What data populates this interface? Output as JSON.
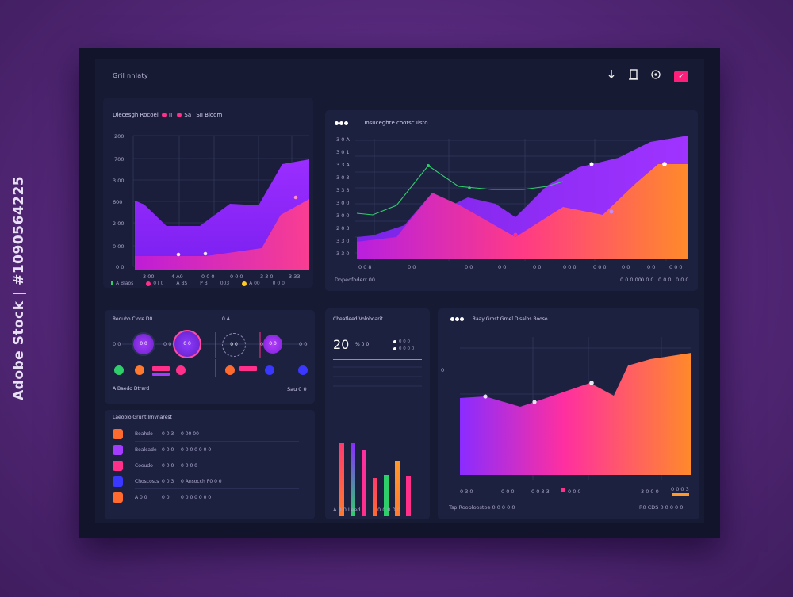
{
  "watermark": "Adobe Stock | #1090564225",
  "topbar": {
    "title": "Gril nnlaty",
    "icons": [
      "download-icon",
      "clipboard-icon",
      "refresh-icon",
      "check-icon"
    ],
    "check_glyph": "✓"
  },
  "panel1": {
    "title": "Diecesgh Rocoel",
    "title_tags": [
      "II",
      "Sa",
      "SII Bloom"
    ],
    "y_ticks": [
      "200",
      "700",
      "3 00",
      "600",
      "2 00",
      "0 00",
      "0 0"
    ],
    "x_ticks": [
      "3 00",
      "4 A0",
      "0 0 0",
      "0 0 0",
      "3 3 0",
      "3 33"
    ],
    "legend": [
      "A Blaos",
      "0 I 0",
      "A BS",
      "P B",
      "003",
      "A 00",
      "0 0 0"
    ]
  },
  "panel2": {
    "title": "Tosuceghte cootsc Ilsto",
    "y_ticks": [
      "3 0 A",
      "3 0 1",
      "3 3 A",
      "3 0 3",
      "3 3 3",
      "3 0 0",
      "3 0 0",
      "2 0 3",
      "3 3 0",
      "3 3 0"
    ],
    "x_ticks": [
      "0 0 8",
      "0 0",
      "0 0",
      "0 0",
      "0 0",
      "0 0 0",
      "0 0 0",
      "0 0",
      "0 0",
      "0 0 0"
    ],
    "footer_left": "Dopeofoderr 00",
    "footer_right": [
      "0 0 0 00",
      "0 0 0",
      "0 0 0",
      "0 0 0"
    ]
  },
  "panel3": {
    "title": "Reoubo Clore D0",
    "title_right": "0 A",
    "circle_labels": [
      "0 0",
      "0 0",
      "0 0",
      "0 0",
      "0 0"
    ],
    "small_labels": [
      "0 0",
      "0 0",
      "0 0",
      "0 0"
    ],
    "footer_left": "A Baedo Dtrard",
    "footer_right": "Sau 0 0"
  },
  "panel4": {
    "title": "Laeoblo Grunt Irnvnarest",
    "rows": [
      {
        "color": "#ff6a2e",
        "a": "Boahdo",
        "b": "0 0 3",
        "c": "0 00 00"
      },
      {
        "color": "#a33cff",
        "a": "Boalcade",
        "b": "0 0 0",
        "c": "0 0 0 0 0 0 0"
      },
      {
        "color": "#ff2f8a",
        "a": "Cooudo",
        "b": "0 0 0",
        "c": "0 0 0 0"
      },
      {
        "color": "#3a38ff",
        "a": "Choscosts",
        "b": "0 0 3",
        "c": "0 Ansocch P0 0 0"
      },
      {
        "color": "#ff6a2e",
        "a": "A 0 0",
        "b": "0 0",
        "c": "0 0 0 0 0 0 0"
      }
    ]
  },
  "panel5": {
    "title": "Cheatleed Voloboarit",
    "big_number": "20",
    "big_suffix": "% 0 0",
    "legend": [
      "0 0 0",
      "0 0 0 0"
    ],
    "bottom_left": "A 0 0 Leed",
    "bottom_right": "0 0 0 0 0"
  },
  "panel6": {
    "title": "Raay Grost Grnel Disalos Booso",
    "x_ticks": [
      "0 3 0",
      "0 0 0",
      "0 0 3 3",
      "0 0 0",
      "3 0 0 0",
      "0 0 0 3"
    ],
    "footer_left": "Tsp Rooploostoe 0 0 0 0 0",
    "footer_right": "R0 CDS 0 0 0 0 0"
  },
  "colors": {
    "purple": "#8a2cff",
    "pink": "#ff2f8a",
    "orange": "#ff7a2e",
    "green": "#2ecf6a",
    "panel": "#1d2140"
  }
}
